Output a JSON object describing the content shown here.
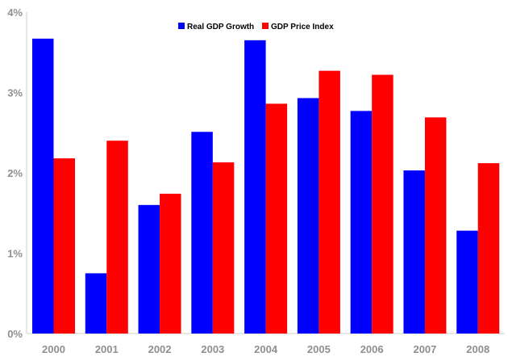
{
  "chart_data": {
    "type": "bar",
    "categories": [
      "2000",
      "2001",
      "2002",
      "2003",
      "2004",
      "2005",
      "2006",
      "2007",
      "2008"
    ],
    "series": [
      {
        "name": "Real GDP Growth",
        "color": "#0000ff",
        "values": [
          3.67,
          0.75,
          1.6,
          2.51,
          3.65,
          2.93,
          2.77,
          2.03,
          1.28
        ]
      },
      {
        "name": "GDP Price Index",
        "color": "#ff0000",
        "values": [
          2.18,
          2.4,
          1.74,
          2.13,
          2.86,
          3.27,
          3.22,
          2.69,
          2.12
        ]
      }
    ],
    "y_ticks": [
      {
        "value": 0,
        "label": "0%"
      },
      {
        "value": 1,
        "label": "1%"
      },
      {
        "value": 2,
        "label": "2%"
      },
      {
        "value": 3,
        "label": "3%"
      },
      {
        "value": 4,
        "label": "4%"
      }
    ],
    "ylim": [
      0,
      4
    ],
    "grid": false,
    "legend_position": "top-center",
    "title": "",
    "xlabel": "",
    "ylabel": ""
  }
}
